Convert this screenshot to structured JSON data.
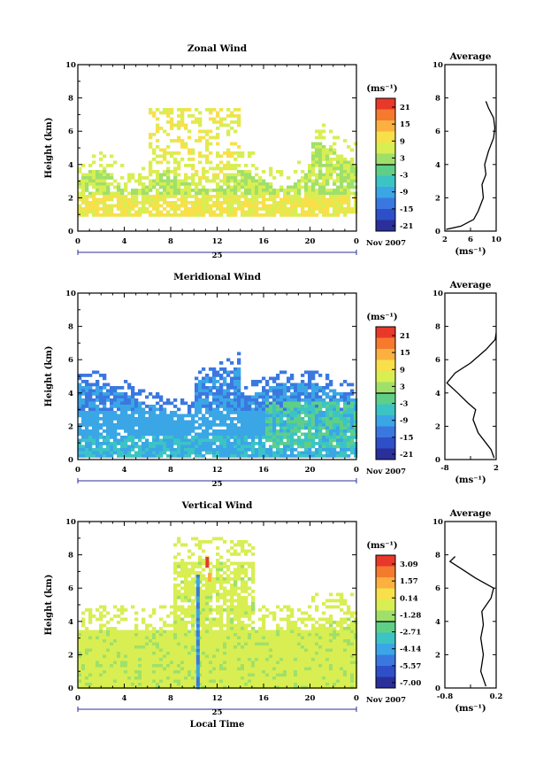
{
  "colors": {
    "scale": [
      "#e8382a",
      "#f57a2e",
      "#fbb040",
      "#f7e04a",
      "#d8ee52",
      "#9fe06a",
      "#5fcf88",
      "#3cc4c4",
      "#3aa6e6",
      "#3a78e0",
      "#2f4fc8",
      "#2a2f9a"
    ],
    "curve": "#000000",
    "axis": "#000000"
  },
  "shared": {
    "date_label": "Nov 2007",
    "day_label": "25",
    "ylabel": "Height (km)",
    "unit_label": "(ms⁻¹)",
    "avg_xlabel": "(ms⁻¹)",
    "avg_title": "Average",
    "time_xlabel": "Local Time",
    "x_ticks": [
      "0",
      "4",
      "8",
      "12",
      "16",
      "20",
      "0"
    ],
    "y_ticks": [
      "0",
      "2",
      "4",
      "6",
      "8",
      "10"
    ]
  },
  "panels": [
    {
      "title": "Zonal Wind",
      "colorbar_labels": [
        "21",
        "15",
        "9",
        "3",
        "-3",
        "-9",
        "-15",
        "-21"
      ],
      "avg_x_ticks": [
        "2",
        "6",
        "10"
      ],
      "avg_xlim": [
        2,
        10
      ]
    },
    {
      "title": "Meridional Wind",
      "colorbar_labels": [
        "21",
        "15",
        "9",
        "3",
        "-3",
        "-9",
        "-15",
        "-21"
      ],
      "avg_x_ticks": [
        "-8",
        "",
        "2"
      ],
      "avg_xlim": [
        -8,
        2
      ]
    },
    {
      "title": "Vertical Wind",
      "colorbar_labels": [
        "3.09",
        "1.57",
        "0.14",
        "-1.28",
        "-2.71",
        "-4.14",
        "-5.57",
        "-7.00"
      ],
      "avg_x_ticks": [
        "-0.8",
        "",
        "0.2"
      ],
      "avg_xlim": [
        -0.8,
        0.2
      ]
    }
  ],
  "chart_data": [
    {
      "type": "heatmap",
      "title": "Zonal Wind",
      "ylabel": "Height (km)",
      "x_ticks": [
        "0",
        "4",
        "8",
        "12",
        "16",
        "20",
        "0"
      ],
      "ylim": [
        0,
        10
      ],
      "colorbar_range": [
        -21,
        21
      ],
      "colorbar_ticks": [
        21,
        15,
        9,
        3,
        -3,
        -9,
        -15,
        -21
      ],
      "regions": [
        {
          "hour_start": 0,
          "hour_end": 24,
          "z_min": 0.8,
          "z_max": 3.6,
          "level": "light positive"
        },
        {
          "hour_start": 6,
          "hour_end": 14,
          "z_min": 3.0,
          "z_max": 7.5,
          "level": "light positive"
        }
      ]
    },
    {
      "type": "line",
      "title": "Average",
      "xlabel": "(ms⁻¹)",
      "xlim": [
        2,
        10
      ],
      "ylim": [
        0,
        10
      ],
      "series": [
        {
          "x": [
            2.2,
            4.5,
            6.5,
            7.2,
            8.0,
            7.8,
            8.4,
            8.2,
            8.8,
            9.6,
            9.8,
            9.6,
            8.8,
            8.4
          ],
          "y": [
            0.1,
            0.3,
            0.7,
            1.2,
            2.0,
            2.8,
            3.4,
            4.0,
            4.8,
            5.6,
            6.2,
            6.8,
            7.4,
            7.8
          ]
        }
      ]
    },
    {
      "type": "heatmap",
      "title": "Meridional Wind",
      "ylabel": "Height (km)",
      "x_ticks": [
        "0",
        "4",
        "8",
        "12",
        "16",
        "20",
        "0"
      ],
      "ylim": [
        0,
        10
      ],
      "colorbar_range": [
        -21,
        21
      ],
      "colorbar_ticks": [
        21,
        15,
        9,
        3,
        -3,
        -9,
        -15,
        -21
      ],
      "regions": [
        {
          "hour_start": 0,
          "hour_end": 24,
          "z_min": 0.2,
          "z_max": 5.4,
          "level": "negative"
        },
        {
          "hour_start": 16,
          "hour_end": 24,
          "z_min": 0.8,
          "z_max": 3.8,
          "level": "near zero (contoured)"
        }
      ]
    },
    {
      "type": "line",
      "title": "Average",
      "xlabel": "(ms⁻¹)",
      "xlim": [
        -8,
        2
      ],
      "ylim": [
        0,
        10
      ],
      "series": [
        {
          "x": [
            1.6,
            1.0,
            0.0,
            -1.5,
            -2.5,
            -2.0,
            -3.5,
            -5.5,
            -7.6,
            -6.0,
            -3.0,
            0.0,
            1.8,
            2.0
          ],
          "y": [
            0.1,
            0.6,
            1.0,
            1.6,
            2.4,
            3.0,
            3.4,
            4.0,
            4.6,
            5.2,
            5.8,
            6.6,
            7.2,
            7.6
          ]
        }
      ]
    },
    {
      "type": "heatmap",
      "title": "Vertical Wind",
      "ylabel": "Height (km)",
      "x_ticks": [
        "0",
        "4",
        "8",
        "12",
        "16",
        "20",
        "0"
      ],
      "ylim": [
        0,
        10
      ],
      "colorbar_range": [
        -7.0,
        3.09
      ],
      "colorbar_ticks": [
        3.09,
        1.57,
        0.14,
        -1.28,
        -2.71,
        -4.14,
        -5.57,
        -7.0
      ],
      "regions": [
        {
          "hour_start": 0,
          "hour_end": 24,
          "z_min": 0.0,
          "z_max": 3.6,
          "level": "near zero"
        },
        {
          "hour_start": 8,
          "hour_end": 16,
          "z_min": 3.6,
          "z_max": 7.8,
          "level": "near zero"
        }
      ]
    },
    {
      "type": "line",
      "title": "Average",
      "xlabel": "(ms⁻¹)",
      "xlim": [
        -0.8,
        0.2
      ],
      "ylim": [
        0,
        10
      ],
      "series": [
        {
          "x": [
            0.0,
            -0.1,
            -0.05,
            -0.1,
            -0.05,
            -0.08,
            0.1,
            0.15,
            -0.2,
            -0.5,
            -0.7,
            -0.6
          ],
          "y": [
            0.1,
            1.0,
            2.0,
            3.0,
            3.8,
            4.6,
            5.4,
            6.0,
            6.6,
            7.2,
            7.6,
            7.9
          ]
        }
      ]
    }
  ]
}
